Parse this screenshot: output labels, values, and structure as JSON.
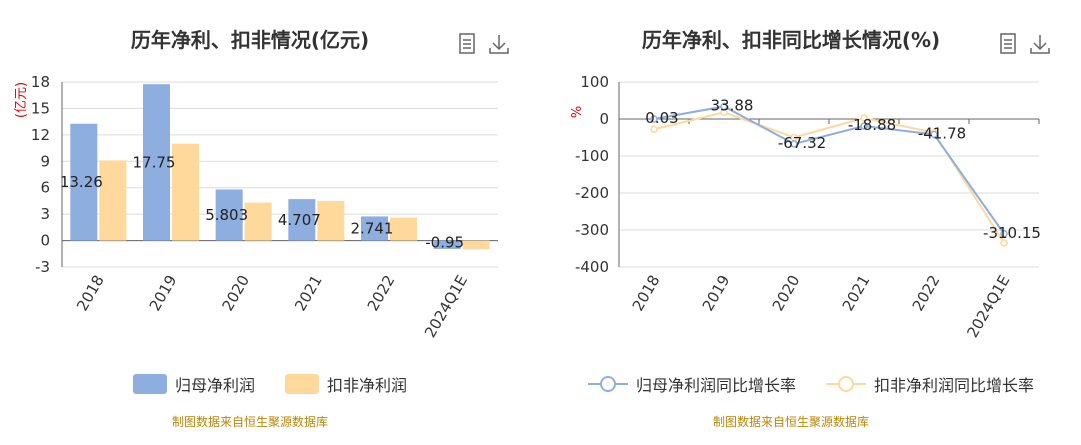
{
  "colors": {
    "primary": "#8eaee0",
    "secondary": "#ffd89b",
    "source": "#b8860b",
    "unit": "#e00000"
  },
  "left": {
    "title": "历年净利、扣非情况(亿元)",
    "legend": [
      "归母净利润",
      "扣非净利润"
    ],
    "source": "制图数据来自恒生聚源数据库"
  },
  "right": {
    "title": "历年净利、扣非同比增长情况(%)",
    "legend": [
      "归母净利润同比增长率",
      "扣非净利润同比增长率"
    ],
    "source": "制图数据来自恒生聚源数据库"
  },
  "icons": [
    "document-icon",
    "download-icon"
  ],
  "chart_data": [
    {
      "type": "bar",
      "title": "历年净利、扣非情况(亿元)",
      "ylabel": "(亿元)",
      "categories": [
        "2018",
        "2019",
        "2020",
        "2021",
        "2022",
        "2024Q1E"
      ],
      "ylim": [
        -3,
        18
      ],
      "yticks": [
        -3,
        0,
        3,
        6,
        9,
        12,
        15,
        18
      ],
      "series": [
        {
          "name": "归母净利润",
          "values": [
            13.26,
            17.75,
            5.803,
            4.707,
            2.741,
            -0.95
          ],
          "labels": [
            "13.26",
            "17.75",
            "5.803",
            "4.707",
            "2.741",
            "-0.95"
          ]
        },
        {
          "name": "扣非净利润",
          "values": [
            9.1,
            11.0,
            4.3,
            4.5,
            2.6,
            -1.0
          ]
        }
      ],
      "legend_position": "bottom"
    },
    {
      "type": "line",
      "title": "历年净利、扣非同比增长情况(%)",
      "ylabel": "%",
      "categories": [
        "2018",
        "2019",
        "2020",
        "2021",
        "2022",
        "2024Q1E"
      ],
      "ylim": [
        -400,
        100
      ],
      "yticks": [
        -400,
        -300,
        -200,
        -100,
        0,
        100
      ],
      "series": [
        {
          "name": "归母净利润同比增长率",
          "values": [
            0.03,
            33.88,
            -67.32,
            -18.88,
            -41.78,
            -310.15
          ],
          "labels": [
            "0.03",
            "33.88",
            "-67.32",
            "-18.88",
            "-41.78",
            "-310.15"
          ]
        },
        {
          "name": "扣非净利润同比增长率",
          "values": [
            -28,
            18,
            -50,
            3,
            -37,
            -335
          ]
        }
      ],
      "legend_position": "bottom"
    }
  ]
}
